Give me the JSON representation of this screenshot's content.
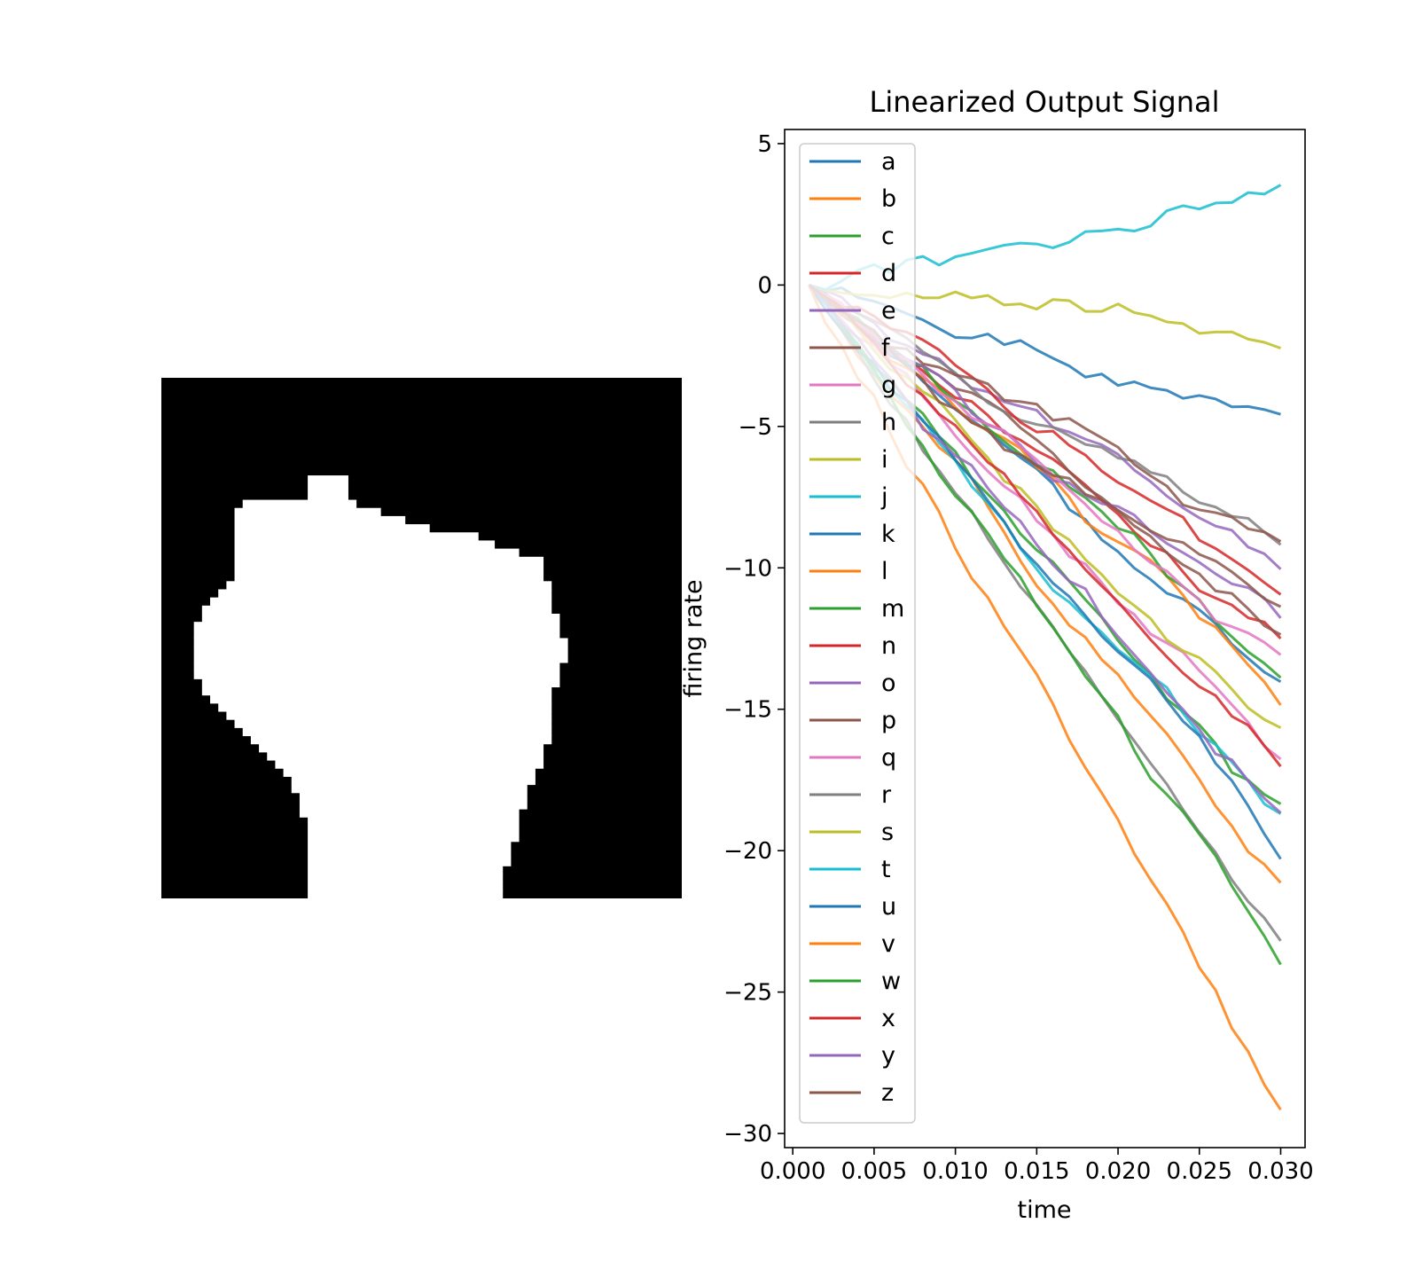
{
  "chart_data": [
    {
      "type": "image",
      "colormap": "gray",
      "image_mask": {
        "grid_size": 64,
        "description": "binary silhouette (white shape on black background)",
        "left_boundary_by_row": [
          [
            14,
            18
          ],
          [
            15,
            10
          ],
          [
            16,
            9
          ],
          [
            17,
            9
          ],
          [
            18,
            9
          ],
          [
            19,
            9
          ],
          [
            20,
            9
          ],
          [
            21,
            9
          ],
          [
            22,
            9
          ],
          [
            23,
            9
          ],
          [
            24,
            9
          ],
          [
            25,
            8
          ],
          [
            26,
            7
          ],
          [
            27,
            6
          ],
          [
            28,
            5
          ],
          [
            29,
            5
          ],
          [
            30,
            4
          ],
          [
            31,
            4
          ],
          [
            32,
            4
          ],
          [
            33,
            4
          ],
          [
            34,
            4
          ],
          [
            35,
            4
          ],
          [
            36,
            4
          ],
          [
            37,
            5
          ],
          [
            38,
            5
          ],
          [
            39,
            6
          ],
          [
            40,
            7
          ],
          [
            41,
            8
          ],
          [
            42,
            9
          ],
          [
            43,
            10
          ],
          [
            44,
            11
          ],
          [
            45,
            12
          ],
          [
            46,
            13
          ],
          [
            47,
            14
          ],
          [
            48,
            15
          ],
          [
            49,
            16
          ],
          [
            50,
            16
          ],
          [
            51,
            17
          ],
          [
            52,
            17
          ],
          [
            53,
            17
          ],
          [
            54,
            18
          ],
          [
            55,
            18
          ],
          [
            56,
            18
          ],
          [
            57,
            18
          ],
          [
            58,
            18
          ],
          [
            59,
            18
          ],
          [
            60,
            18
          ],
          [
            61,
            18
          ],
          [
            62,
            18
          ],
          [
            63,
            18
          ]
        ],
        "right_boundary_by_row": [
          [
            12,
            20
          ],
          [
            13,
            21
          ],
          [
            14,
            22
          ],
          [
            15,
            23
          ],
          [
            16,
            26
          ],
          [
            17,
            29
          ],
          [
            18,
            32
          ],
          [
            19,
            38
          ],
          [
            20,
            40
          ],
          [
            21,
            43
          ],
          [
            22,
            46
          ],
          [
            23,
            46
          ],
          [
            24,
            46
          ],
          [
            25,
            47
          ],
          [
            26,
            47
          ],
          [
            27,
            47
          ],
          [
            28,
            47
          ],
          [
            29,
            48
          ],
          [
            30,
            48
          ],
          [
            31,
            48
          ],
          [
            32,
            49
          ],
          [
            33,
            49
          ],
          [
            34,
            49
          ],
          [
            35,
            48
          ],
          [
            36,
            48
          ],
          [
            37,
            48
          ],
          [
            38,
            47
          ],
          [
            39,
            47
          ],
          [
            40,
            47
          ],
          [
            41,
            47
          ],
          [
            42,
            47
          ],
          [
            43,
            47
          ],
          [
            44,
            47
          ],
          [
            45,
            46
          ],
          [
            46,
            46
          ],
          [
            47,
            46
          ],
          [
            48,
            45
          ],
          [
            49,
            45
          ],
          [
            50,
            44
          ],
          [
            51,
            44
          ],
          [
            52,
            44
          ],
          [
            53,
            43
          ],
          [
            54,
            43
          ],
          [
            55,
            43
          ],
          [
            56,
            43
          ],
          [
            57,
            42
          ],
          [
            58,
            42
          ],
          [
            59,
            42
          ],
          [
            60,
            41
          ],
          [
            61,
            41
          ],
          [
            62,
            41
          ],
          [
            63,
            41
          ]
        ],
        "bump": {
          "rows": [
            12,
            16
          ],
          "cols": [
            18,
            22
          ]
        }
      }
    },
    {
      "type": "line",
      "title": "Linearized Output Signal",
      "xlabel": "time",
      "ylabel": "firing rate",
      "xlim": [
        -0.0005,
        0.0315
      ],
      "ylim": [
        -30.5,
        5.5
      ],
      "xticks": [
        0.0,
        0.005,
        0.01,
        0.015,
        0.02,
        0.025,
        0.03
      ],
      "xtick_labels": [
        "0.000",
        "0.005",
        "0.010",
        "0.015",
        "0.020",
        "0.025",
        "0.030"
      ],
      "yticks": [
        5,
        0,
        -5,
        -10,
        -15,
        -20,
        -25,
        -30
      ],
      "ytick_labels": [
        "5",
        "0",
        "−5",
        "−10",
        "−15",
        "−20",
        "−25",
        "−30"
      ],
      "legend_position": "upper-left",
      "x_start": 0.001,
      "x_step": 0.001,
      "series": [
        {
          "name": "a",
          "color": "#1f77b4",
          "slope": -200,
          "noise": 0.8,
          "seed": 1
        },
        {
          "name": "b",
          "color": "#ff7f0e",
          "slope": -700,
          "noise": 0.9,
          "seed": 2
        },
        {
          "name": "c",
          "color": "#2ca02c",
          "slope": -630,
          "noise": 0.8,
          "seed": 3
        },
        {
          "name": "d",
          "color": "#d62728",
          "slope": -410,
          "noise": 0.8,
          "seed": 4
        },
        {
          "name": "e",
          "color": "#9467bd",
          "slope": -390,
          "noise": 0.8,
          "seed": 5
        },
        {
          "name": "f",
          "color": "#8c564b",
          "slope": -410,
          "noise": 0.8,
          "seed": 6
        },
        {
          "name": "g",
          "color": "#e377c2",
          "slope": -560,
          "noise": 0.8,
          "seed": 7
        },
        {
          "name": "h",
          "color": "#7f7f7f",
          "slope": -330,
          "noise": 0.8,
          "seed": 8
        },
        {
          "name": "i",
          "color": "#bcbd22",
          "slope": -90,
          "noise": 0.9,
          "seed": 9
        },
        {
          "name": "j",
          "color": "#17becf",
          "slope": 120,
          "noise": 1.1,
          "seed": 10
        },
        {
          "name": "k",
          "color": "#1f77b4",
          "slope": -500,
          "noise": 0.8,
          "seed": 11
        },
        {
          "name": "l",
          "color": "#ff7f0e",
          "slope": -510,
          "noise": 0.8,
          "seed": 12
        },
        {
          "name": "m",
          "color": "#2ca02c",
          "slope": -450,
          "noise": 0.8,
          "seed": 13
        },
        {
          "name": "n",
          "color": "#d62728",
          "slope": -380,
          "noise": 0.8,
          "seed": 14
        },
        {
          "name": "o",
          "color": "#9467bd",
          "slope": -440,
          "noise": 0.8,
          "seed": 15
        },
        {
          "name": "p",
          "color": "#8c564b",
          "slope": -320,
          "noise": 0.8,
          "seed": 16
        },
        {
          "name": "q",
          "color": "#e377c2",
          "slope": -440,
          "noise": 0.8,
          "seed": 17
        },
        {
          "name": "r",
          "color": "#7f7f7f",
          "slope": -820,
          "noise": 0.8,
          "seed": 18
        },
        {
          "name": "s",
          "color": "#bcbd22",
          "slope": -550,
          "noise": 0.8,
          "seed": 19
        },
        {
          "name": "t",
          "color": "#17becf",
          "slope": -620,
          "noise": 0.8,
          "seed": 20
        },
        {
          "name": "u",
          "color": "#1f77b4",
          "slope": -690,
          "noise": 0.8,
          "seed": 21
        },
        {
          "name": "v",
          "color": "#ff7f0e",
          "slope": -960,
          "noise": 1.0,
          "seed": 22
        },
        {
          "name": "w",
          "color": "#2ca02c",
          "slope": -840,
          "noise": 0.8,
          "seed": 23
        },
        {
          "name": "x",
          "color": "#d62728",
          "slope": -580,
          "noise": 0.8,
          "seed": 24
        },
        {
          "name": "y",
          "color": "#9467bd",
          "slope": -610,
          "noise": 0.8,
          "seed": 25
        },
        {
          "name": "z",
          "color": "#8c564b",
          "slope": -390,
          "noise": 0.8,
          "seed": 26
        }
      ]
    }
  ]
}
